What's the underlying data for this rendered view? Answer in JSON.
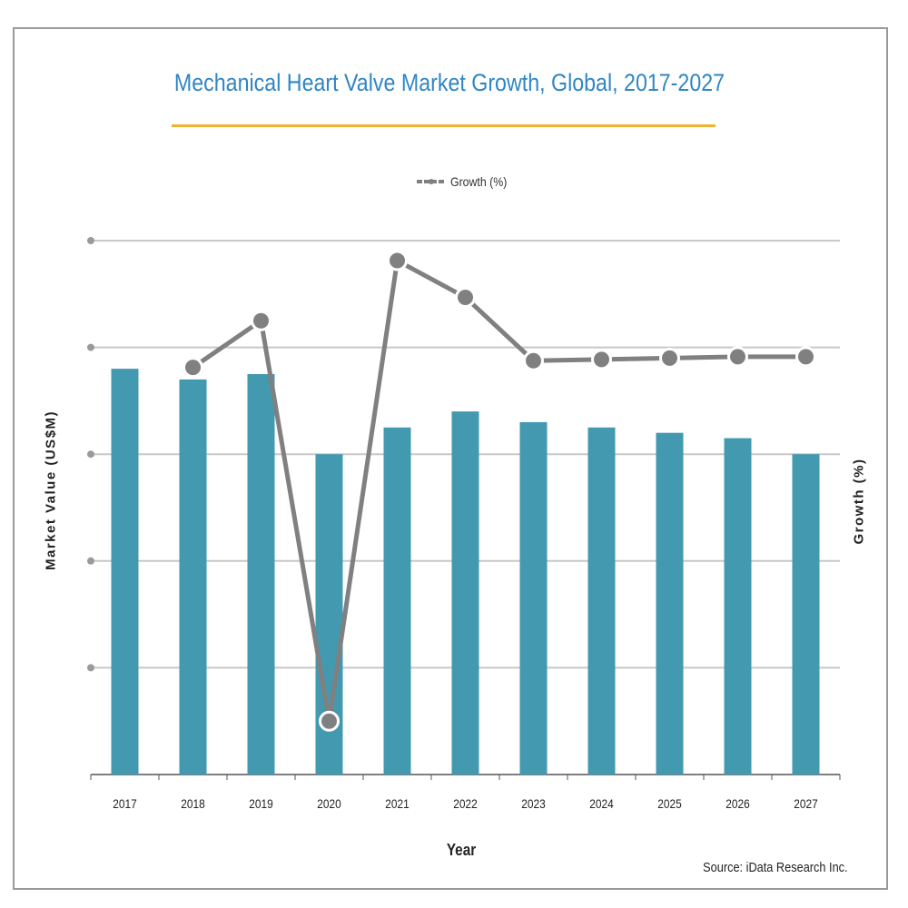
{
  "chart_data": {
    "type": "bar",
    "title": "Mechanical Heart Valve Market Growth, Global, 2017-2027",
    "xlabel": "Year",
    "ylabel": "Market Value (US$M)",
    "y2label": "Growth (%)",
    "categories": [
      "2017",
      "2018",
      "2019",
      "2020",
      "2021",
      "2022",
      "2023",
      "2024",
      "2025",
      "2026",
      "2027"
    ],
    "bar_values": [
      3.8,
      3.7,
      3.75,
      3.0,
      3.25,
      3.4,
      3.3,
      3.25,
      3.2,
      3.15,
      3.0
    ],
    "ylim": [
      0,
      5
    ],
    "line_series": {
      "name": "Growth (%)",
      "values": [
        null,
        3.1,
        3.8,
        -2.2,
        4.7,
        4.15,
        3.2,
        3.22,
        3.24,
        3.26,
        3.26
      ]
    },
    "y2lim": [
      -3,
      5
    ],
    "grid": true,
    "legend_position": "top-center",
    "colors": {
      "bar": "#4299b0",
      "line": "#808080",
      "title": "#2f86c4",
      "title_rule": "#f0b030"
    },
    "source": "Source: iData Research Inc."
  }
}
